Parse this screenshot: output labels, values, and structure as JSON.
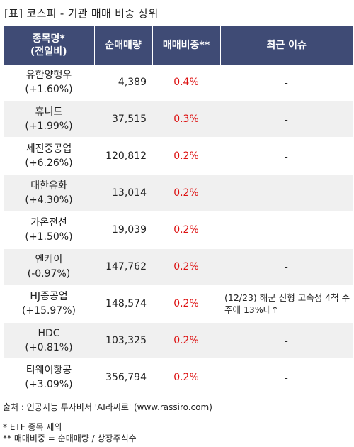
{
  "title": "[표] 코스피 - 기관 매매 비중 상위",
  "headers": {
    "name_line1": "종목명*",
    "name_line2": "(전일비)",
    "volume": "순매매량",
    "ratio": "매매비중**",
    "issue": "최근 이슈"
  },
  "rows": [
    {
      "name": "유한양행우",
      "change": "(+1.60%)",
      "volume": "4,389",
      "ratio": "0.4%",
      "issue": "-"
    },
    {
      "name": "휴니드",
      "change": "(+1.99%)",
      "volume": "37,515",
      "ratio": "0.3%",
      "issue": "-"
    },
    {
      "name": "세진중공업",
      "change": "(+6.26%)",
      "volume": "120,812",
      "ratio": "0.2%",
      "issue": "-"
    },
    {
      "name": "대한유화",
      "change": "(+4.30%)",
      "volume": "13,014",
      "ratio": "0.2%",
      "issue": "-"
    },
    {
      "name": "가온전선",
      "change": "(+1.50%)",
      "volume": "19,039",
      "ratio": "0.2%",
      "issue": "-"
    },
    {
      "name": "엔케이",
      "change": "(-0.97%)",
      "volume": "147,762",
      "ratio": "0.2%",
      "issue": "-"
    },
    {
      "name": "HJ중공업",
      "change": "(+15.97%)",
      "volume": "148,574",
      "ratio": "0.2%",
      "issue": "(12/23) 해군 신형 고속정 4척 수주에 13%대↑"
    },
    {
      "name": "HDC",
      "change": "(+0.81%)",
      "volume": "103,325",
      "ratio": "0.2%",
      "issue": "-"
    },
    {
      "name": "티웨이항공",
      "change": "(+3.09%)",
      "volume": "356,794",
      "ratio": "0.2%",
      "issue": "-"
    }
  ],
  "notes": {
    "source": "출처 : 인공지능 투자비서 'AI라씨로' (www.rassiro.com)",
    "note1": "* ETF 종목 제외",
    "note2": "** 매매비중 = 순매매량 / 상장주식수"
  }
}
